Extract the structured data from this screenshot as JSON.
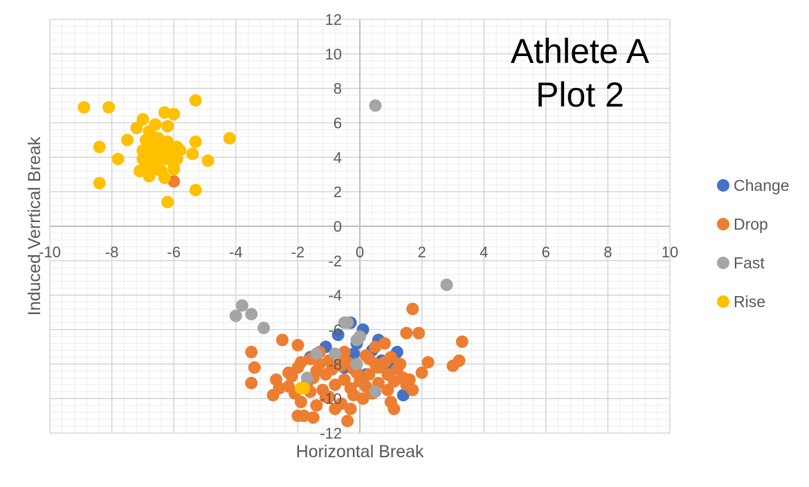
{
  "chart_data": {
    "type": "scatter",
    "title_lines": [
      "Athlete A",
      "Plot 2"
    ],
    "xlabel": "Horizontal Break",
    "ylabel": "Induced Verrtical Break",
    "xlim": [
      -10,
      10
    ],
    "ylim": [
      -12,
      12
    ],
    "x_ticks": [
      -10,
      -8,
      -6,
      -4,
      -2,
      0,
      2,
      4,
      6,
      8,
      10
    ],
    "y_ticks": [
      -12,
      -10,
      -8,
      -6,
      -4,
      -2,
      0,
      2,
      4,
      6,
      8,
      10,
      12
    ],
    "x_tick_labels": [
      "-10",
      "-8",
      "-6",
      "-4",
      "-2",
      "0",
      "2",
      "4",
      "6",
      "8",
      "10"
    ],
    "y_tick_labels": [
      "-12",
      "-10",
      "-8",
      "-6",
      "-4",
      "-2",
      "0",
      "2",
      "4",
      "6",
      "8",
      "10",
      "12"
    ],
    "grid": true,
    "minor_grid": true,
    "legend_position": "right",
    "series": [
      {
        "name": "Change",
        "color": "#4472C4",
        "points": [
          [
            -0.3,
            -5.6
          ],
          [
            0.1,
            -6.0
          ],
          [
            -0.7,
            -6.3
          ],
          [
            0.6,
            -6.6
          ],
          [
            -1.1,
            -7.0
          ],
          [
            1.2,
            -7.3
          ],
          [
            -1.6,
            -7.6
          ],
          [
            0.4,
            -7.2
          ],
          [
            -0.1,
            -6.8
          ],
          [
            0.9,
            -8.0
          ],
          [
            -0.5,
            -8.2
          ],
          [
            1.4,
            -9.8
          ],
          [
            0.2,
            -8.6
          ],
          [
            -0.9,
            -8.0
          ],
          [
            0.7,
            -7.8
          ],
          [
            -0.2,
            -7.4
          ]
        ]
      },
      {
        "name": "Drop",
        "color": "#ED7D31",
        "points": [
          [
            -6.0,
            2.6
          ],
          [
            1.7,
            -4.8
          ],
          [
            3.3,
            -6.7
          ],
          [
            1.9,
            -6.2
          ],
          [
            1.5,
            -6.2
          ],
          [
            -2.5,
            -6.6
          ],
          [
            -2.0,
            -6.9
          ],
          [
            -3.5,
            -7.3
          ],
          [
            -3.4,
            -8.2
          ],
          [
            -3.5,
            -9.1
          ],
          [
            -2.7,
            -8.9
          ],
          [
            -2.8,
            -9.8
          ],
          [
            -2.3,
            -9.3
          ],
          [
            -2.2,
            -8.7
          ],
          [
            -2.0,
            -8.2
          ],
          [
            -1.9,
            -10.2
          ],
          [
            -2.0,
            -11.0
          ],
          [
            -1.8,
            -11.0
          ],
          [
            -1.5,
            -11.1
          ],
          [
            -1.4,
            -10.4
          ],
          [
            -1.1,
            -9.9
          ],
          [
            -0.8,
            -10.6
          ],
          [
            -0.6,
            -10.3
          ],
          [
            -0.4,
            -11.3
          ],
          [
            -0.3,
            -10.6
          ],
          [
            0.1,
            -10.0
          ],
          [
            0.4,
            -9.7
          ],
          [
            0.9,
            -9.5
          ],
          [
            1.0,
            -10.2
          ],
          [
            1.1,
            -10.6
          ],
          [
            1.5,
            -9.2
          ],
          [
            1.7,
            -9.5
          ],
          [
            2.0,
            -8.5
          ],
          [
            2.2,
            -7.9
          ],
          [
            1.4,
            -8.8
          ],
          [
            1.3,
            -8.0
          ],
          [
            1.0,
            -7.6
          ],
          [
            0.8,
            -6.8
          ],
          [
            0.5,
            -7.0
          ],
          [
            0.2,
            -7.5
          ],
          [
            -0.2,
            -8.3
          ],
          [
            -0.5,
            -8.9
          ],
          [
            -0.8,
            -9.2
          ],
          [
            -1.1,
            -8.6
          ],
          [
            -1.4,
            -8.4
          ],
          [
            -1.7,
            -9.1
          ],
          [
            -1.6,
            -7.7
          ],
          [
            -1.3,
            -7.3
          ],
          [
            -1.0,
            -7.8
          ],
          [
            -0.6,
            -8.1
          ],
          [
            -0.3,
            -9.4
          ],
          [
            0.0,
            -9.0
          ],
          [
            0.3,
            -8.6
          ],
          [
            0.6,
            -8.2
          ],
          [
            0.9,
            -8.6
          ],
          [
            1.1,
            -9.0
          ],
          [
            1.6,
            -8.9
          ],
          [
            3.0,
            -8.1
          ],
          [
            3.2,
            -7.8
          ],
          [
            -2.3,
            -8.5
          ],
          [
            -1.9,
            -7.9
          ],
          [
            -1.5,
            -8.8
          ],
          [
            -1.2,
            -9.5
          ],
          [
            -0.9,
            -8.3
          ],
          [
            -0.7,
            -7.6
          ],
          [
            -0.4,
            -7.9
          ],
          [
            -0.1,
            -8.5
          ],
          [
            0.2,
            -9.3
          ],
          [
            0.5,
            -8.0
          ],
          [
            0.8,
            -7.9
          ],
          [
            -1.6,
            -9.6
          ],
          [
            -1.0,
            -9.9
          ],
          [
            -0.2,
            -9.8
          ],
          [
            0.6,
            -9.1
          ],
          [
            1.2,
            -8.3
          ],
          [
            -2.6,
            -9.4
          ],
          [
            -2.1,
            -9.7
          ],
          [
            -1.3,
            -8.0
          ],
          [
            -0.5,
            -7.3
          ],
          [
            0.3,
            -7.7
          ]
        ]
      },
      {
        "name": "Fast",
        "color": "#A5A5A5",
        "points": [
          [
            0.5,
            7.0
          ],
          [
            2.8,
            -3.4
          ],
          [
            -3.8,
            -4.6
          ],
          [
            -3.5,
            -5.1
          ],
          [
            -4.0,
            -5.2
          ],
          [
            -3.1,
            -5.9
          ],
          [
            -0.5,
            -5.6
          ],
          [
            -0.4,
            -5.6
          ],
          [
            0.0,
            -6.4
          ],
          [
            -0.1,
            -6.6
          ],
          [
            -1.4,
            -7.4
          ],
          [
            -0.8,
            -7.4
          ],
          [
            -0.1,
            -8.0
          ],
          [
            0.5,
            -9.6
          ],
          [
            -1.7,
            -8.8
          ]
        ]
      },
      {
        "name": "Rise",
        "color": "#FFC000",
        "points": [
          [
            -8.9,
            6.9
          ],
          [
            -8.1,
            6.9
          ],
          [
            -5.3,
            7.3
          ],
          [
            -6.3,
            6.6
          ],
          [
            -6.0,
            6.5
          ],
          [
            -7.0,
            6.2
          ],
          [
            -6.6,
            5.9
          ],
          [
            -7.2,
            5.7
          ],
          [
            -6.8,
            5.5
          ],
          [
            -6.2,
            5.8
          ],
          [
            -7.5,
            5.0
          ],
          [
            -6.9,
            5.0
          ],
          [
            -6.5,
            5.1
          ],
          [
            -6.2,
            4.9
          ],
          [
            -5.9,
            4.6
          ],
          [
            -5.3,
            4.9
          ],
          [
            -4.2,
            5.1
          ],
          [
            -8.4,
            4.6
          ],
          [
            -7.0,
            4.4
          ],
          [
            -6.8,
            4.6
          ],
          [
            -6.6,
            4.3
          ],
          [
            -6.4,
            4.5
          ],
          [
            -6.1,
            4.2
          ],
          [
            -5.8,
            4.4
          ],
          [
            -5.4,
            4.2
          ],
          [
            -4.9,
            3.8
          ],
          [
            -7.8,
            3.9
          ],
          [
            -7.0,
            3.9
          ],
          [
            -6.7,
            4.0
          ],
          [
            -6.5,
            3.7
          ],
          [
            -6.3,
            3.9
          ],
          [
            -6.0,
            3.6
          ],
          [
            -5.9,
            3.9
          ],
          [
            -7.1,
            3.2
          ],
          [
            -6.6,
            3.3
          ],
          [
            -6.4,
            3.2
          ],
          [
            -6.0,
            3.3
          ],
          [
            -6.8,
            2.9
          ],
          [
            -6.3,
            2.8
          ],
          [
            -8.4,
            2.5
          ],
          [
            -5.3,
            2.1
          ],
          [
            -6.2,
            1.4
          ],
          [
            -6.7,
            5.2
          ],
          [
            -6.5,
            4.8
          ],
          [
            -6.9,
            4.1
          ],
          [
            -6.3,
            4.1
          ],
          [
            -6.6,
            3.6
          ],
          [
            -6.9,
            3.6
          ],
          [
            -1.9,
            -9.4
          ],
          [
            -1.8,
            -9.4
          ]
        ]
      }
    ]
  }
}
